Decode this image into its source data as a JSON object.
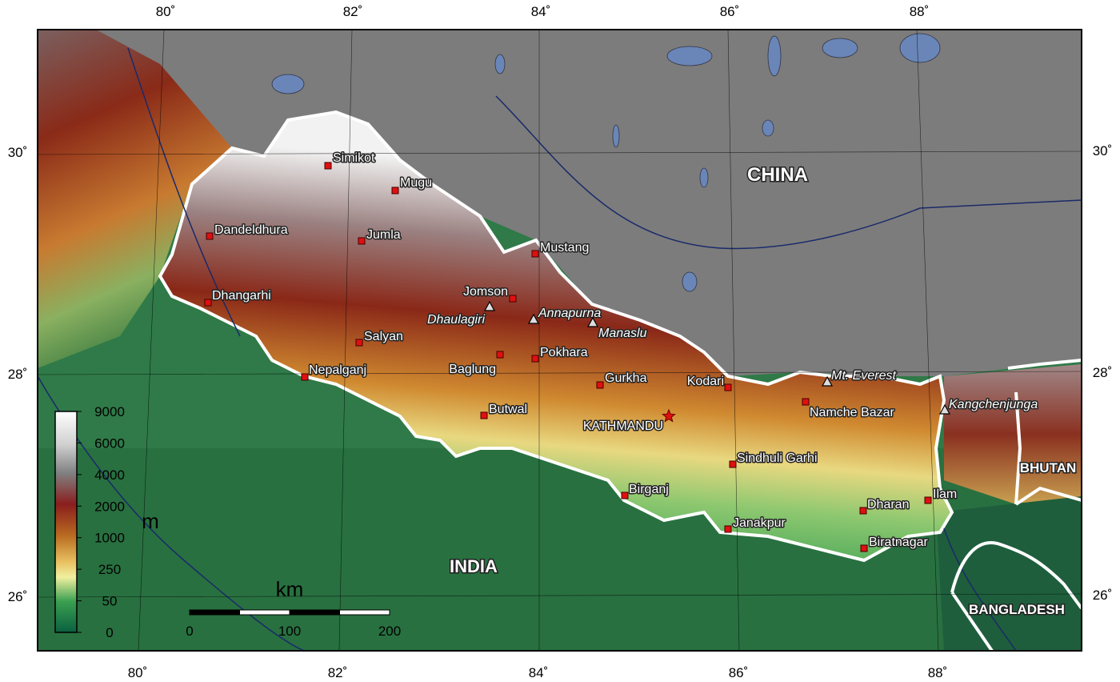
{
  "map": {
    "graticule": {
      "top": [
        "80˚",
        "82˚",
        "84˚",
        "86˚",
        "88˚"
      ],
      "bottom": [
        "80˚",
        "82˚",
        "84˚",
        "86˚",
        "88˚"
      ],
      "left": [
        "30˚",
        "28˚",
        "26˚"
      ],
      "right": [
        "30˚",
        "28˚",
        "26˚"
      ]
    },
    "countries": [
      "CHINA",
      "INDIA",
      "BHUTAN",
      "BANGLADESH"
    ],
    "cities": [
      "Simikot",
      "Mugu",
      "Dandeldhura",
      "Jumla",
      "Mustang",
      "Jomson",
      "Dhangarhi",
      "Salyan",
      "Pokhara",
      "Baglung",
      "Nepalganj",
      "Gurkha",
      "Kodari",
      "Namche Bazar",
      "Butwal",
      "Sindhuli Garhi",
      "Birganj",
      "Dharan",
      "Ilam",
      "Janakpur",
      "Biratnagar"
    ],
    "capital": "KATHMANDU",
    "peaks": [
      "Dhaulagiri",
      "Annapurna",
      "Manaslu",
      "Mt. Everest",
      "Kangchenjunga"
    ],
    "legend": {
      "unit": "m",
      "levels": [
        "9000",
        "6000",
        "4000",
        "2000",
        "1000",
        "250",
        "50",
        "0"
      ]
    },
    "scale": {
      "unit": "km",
      "ticks": [
        "0",
        "100",
        "200"
      ]
    }
  }
}
